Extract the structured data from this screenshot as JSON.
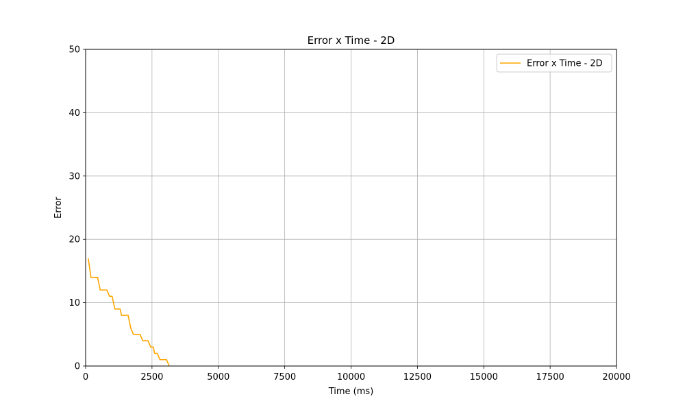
{
  "chart_data": {
    "type": "line",
    "title": "Error x Time - 2D",
    "xlabel": "Time (ms)",
    "ylabel": "Error",
    "xlim": [
      0,
      20000
    ],
    "ylim": [
      0,
      50
    ],
    "x_ticks": [
      0,
      2500,
      5000,
      7500,
      10000,
      12500,
      15000,
      17500,
      20000
    ],
    "y_ticks": [
      0,
      10,
      20,
      30,
      40,
      50
    ],
    "grid": true,
    "legend_position": "top-right",
    "series": [
      {
        "name": "Error x Time - 2D",
        "color": "#ffa500",
        "points": [
          [
            100,
            17
          ],
          [
            200,
            14
          ],
          [
            450,
            14
          ],
          [
            550,
            12
          ],
          [
            800,
            12
          ],
          [
            900,
            11
          ],
          [
            1000,
            11
          ],
          [
            1100,
            9
          ],
          [
            1300,
            9
          ],
          [
            1350,
            8
          ],
          [
            1600,
            8
          ],
          [
            1700,
            6
          ],
          [
            1800,
            5
          ],
          [
            2050,
            5
          ],
          [
            2150,
            4
          ],
          [
            2350,
            4
          ],
          [
            2450,
            3
          ],
          [
            2550,
            3
          ],
          [
            2600,
            2
          ],
          [
            2700,
            2
          ],
          [
            2800,
            1
          ],
          [
            3050,
            1
          ],
          [
            3150,
            0
          ]
        ]
      }
    ]
  }
}
